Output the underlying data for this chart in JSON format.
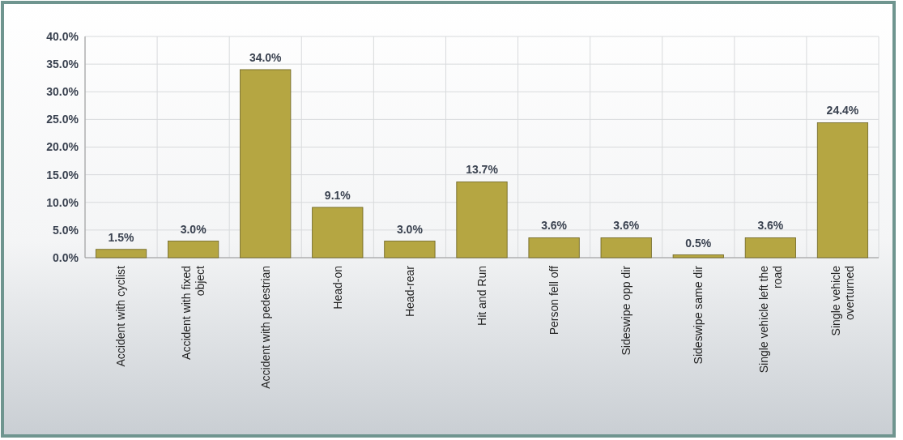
{
  "chart_data": {
    "type": "bar",
    "categories": [
      "Accident with cyclist",
      "Accident with fixed object",
      "Accident with pedestrian",
      "Head-on",
      "Head-rear",
      "Hit and Run",
      "Person fell off",
      "Sideswipe opp dir",
      "Sideswipe same dir",
      "Single vehicle left the road",
      "Single vehicle overturned"
    ],
    "values": [
      1.5,
      3.0,
      34.0,
      9.1,
      3.0,
      13.7,
      3.6,
      3.6,
      0.5,
      3.6,
      24.4
    ],
    "value_labels": [
      "1.5%",
      "3.0%",
      "34.0%",
      "9.1%",
      "3.0%",
      "13.7%",
      "3.6%",
      "3.6%",
      "0.5%",
      "3.6%",
      "24.4%"
    ],
    "color": "#b5a642",
    "ylim": [
      0,
      40
    ],
    "yticks": [
      {
        "value": 0,
        "label": "0.0%"
      },
      {
        "value": 5,
        "label": "5.0%"
      },
      {
        "value": 10,
        "label": "10.0%"
      },
      {
        "value": 15,
        "label": "15.0%"
      },
      {
        "value": 20,
        "label": "20.0%"
      },
      {
        "value": 25,
        "label": "25.0%"
      },
      {
        "value": 30,
        "label": "30.0%"
      },
      {
        "value": 35,
        "label": "35.0%"
      },
      {
        "value": 40,
        "label": "40.0%"
      }
    ],
    "grid": true
  }
}
